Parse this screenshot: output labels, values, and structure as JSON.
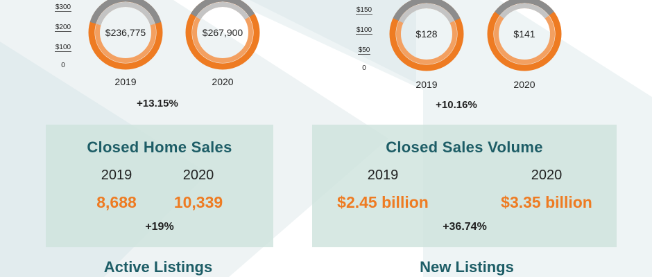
{
  "colors": {
    "orange": "#ee7b22",
    "orange_light": "#f3a061",
    "gray": "#8c8c8c",
    "gray_light": "#c4c4c4",
    "teal": "#1d5d66",
    "panel": "#cee3dd"
  },
  "chart_data": [
    {
      "type": "pie",
      "scale_labels": [
        "$300",
        "$200",
        "$100",
        "0"
      ],
      "categories": [
        "2019",
        "2020"
      ],
      "values": [
        236775,
        267900
      ],
      "value_labels": [
        "$236,775",
        "$267,900"
      ],
      "change": "+13.15%"
    },
    {
      "type": "pie",
      "scale_labels": [
        "$150",
        "$100",
        "$50",
        "0"
      ],
      "categories": [
        "2019",
        "2020"
      ],
      "values": [
        128,
        141
      ],
      "value_labels": [
        "$128",
        "$141"
      ],
      "change": "+10.16%"
    }
  ],
  "closed_home_sales": {
    "title": "Closed Home Sales",
    "year_a": "2019",
    "year_b": "2020",
    "value_a": "8,688",
    "value_b": "10,339",
    "change": "+19%"
  },
  "closed_sales_volume": {
    "title": "Closed Sales Volume",
    "year_a": "2019",
    "year_b": "2020",
    "value_a": "$2.45 billion",
    "value_b": "$3.35 billion",
    "change": "+36.74%"
  },
  "active_listings": {
    "title": "Active Listings"
  },
  "new_listings": {
    "title": "New Listings"
  }
}
